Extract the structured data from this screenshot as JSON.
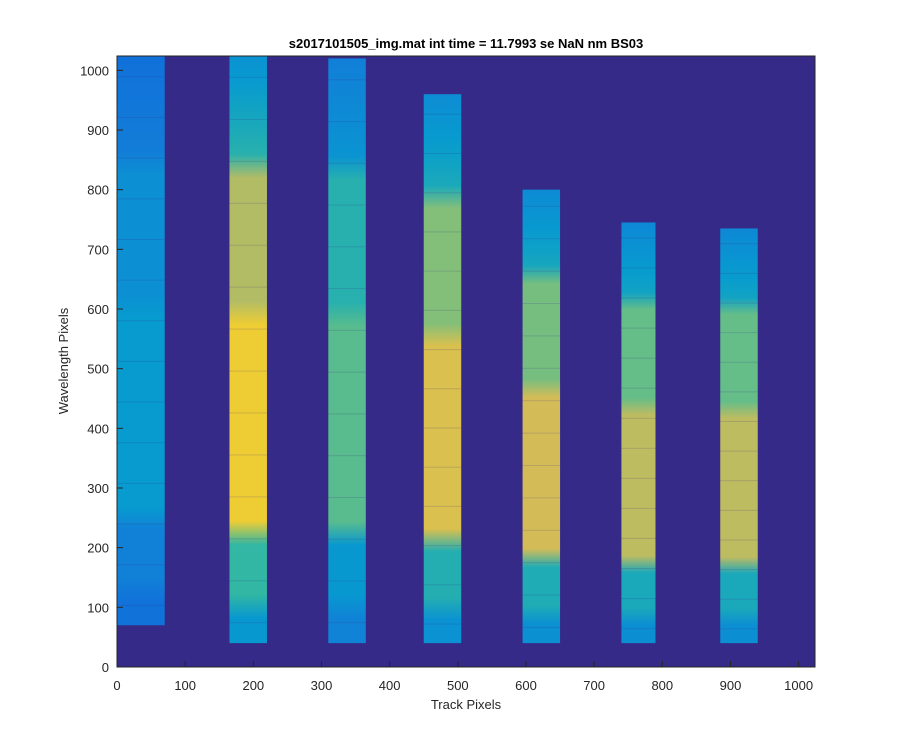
{
  "chart_data": {
    "type": "heatmap",
    "title": "s2017101505_img.mat int time = 11.7993 se  NaN nm BS03",
    "xlabel": "Track Pixels",
    "ylabel": "Wavelength Pixels",
    "xlim": [
      0,
      1024
    ],
    "ylim": [
      0,
      1024
    ],
    "x_ticks": [
      0,
      100,
      200,
      300,
      400,
      500,
      600,
      700,
      800,
      900,
      1000
    ],
    "y_ticks": [
      0,
      100,
      200,
      300,
      400,
      500,
      600,
      700,
      800,
      900,
      1000
    ],
    "grid": false,
    "colormap": "parula",
    "colors": {
      "background": "#352a87",
      "low": "#0f5cdd",
      "mid": "#33b8a1",
      "high": "#f9d427"
    },
    "tracks": [
      {
        "x_start": 0,
        "x_end": 70,
        "y_bottom": 70,
        "y_top": 1024,
        "peak_level": 0.35
      },
      {
        "x_start": 165,
        "x_end": 220,
        "y_bottom": 40,
        "y_top": 1024,
        "peak_level": 0.95
      },
      {
        "x_start": 310,
        "x_end": 365,
        "y_bottom": 40,
        "y_top": 1020,
        "peak_level": 0.6
      },
      {
        "x_start": 450,
        "x_end": 505,
        "y_bottom": 40,
        "y_top": 960,
        "peak_level": 0.85
      },
      {
        "x_start": 595,
        "x_end": 650,
        "y_bottom": 40,
        "y_top": 800,
        "peak_level": 0.82
      },
      {
        "x_start": 740,
        "x_end": 790,
        "y_bottom": 40,
        "y_top": 745,
        "peak_level": 0.78
      },
      {
        "x_start": 885,
        "x_end": 940,
        "y_bottom": 40,
        "y_top": 735,
        "peak_level": 0.78
      }
    ]
  }
}
